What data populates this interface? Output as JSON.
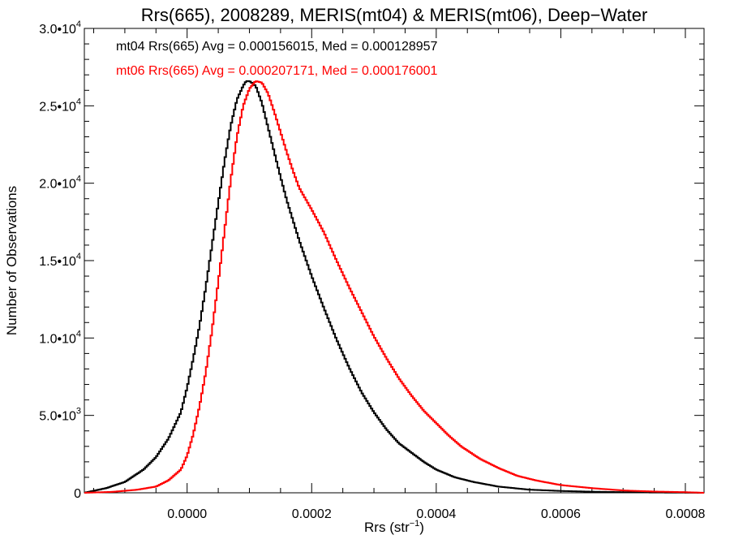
{
  "chart_data": {
    "type": "line",
    "title": "Rrs(665), 2008289, MERIS(mt04) & MERIS(mt06), Deep−Water",
    "xlabel_main": "Rrs (str",
    "xlabel_sup": "−1",
    "xlabel_close": ")",
    "ylabel": "Number of Observations",
    "xlim": [
      -0.000165,
      0.00083
    ],
    "ylim": [
      0,
      30000
    ],
    "x_ticks": [
      {
        "value": 0.0,
        "label": "0.0000"
      },
      {
        "value": 0.0002,
        "label": "0.0002"
      },
      {
        "value": 0.0004,
        "label": "0.0004"
      },
      {
        "value": 0.0006,
        "label": "0.0006"
      },
      {
        "value": 0.0008,
        "label": "0.0008"
      }
    ],
    "y_ticks": [
      {
        "value": 0,
        "mant": "0",
        "exp": ""
      },
      {
        "value": 5000,
        "mant": "5.0•10",
        "exp": "3"
      },
      {
        "value": 10000,
        "mant": "1.0•10",
        "exp": "4"
      },
      {
        "value": 15000,
        "mant": "1.5•10",
        "exp": "4"
      },
      {
        "value": 20000,
        "mant": "2.0•10",
        "exp": "4"
      },
      {
        "value": 25000,
        "mant": "2.5•10",
        "exp": "4"
      },
      {
        "value": 30000,
        "mant": "3.0•10",
        "exp": "4"
      }
    ],
    "annotations": [
      "mt04 Rrs(665) Avg = 0.000156015, Med = 0.000128957",
      "mt06 Rrs(665) Avg = 0.000207171, Med = 0.000176001"
    ],
    "series": [
      {
        "color": "#000000",
        "x": [
          -0.000165,
          -0.00013,
          -0.0001,
          -7e-05,
          -5e-05,
          -3e-05,
          -1e-05,
          0.0,
          1e-05,
          2e-05,
          3e-05,
          4e-05,
          5e-05,
          6e-05,
          7e-05,
          8e-05,
          9e-05,
          9.5e-05,
          0.0001,
          0.00011,
          0.00012,
          0.00013,
          0.00014,
          0.00015,
          0.00016,
          0.00017,
          0.00018,
          0.0002,
          0.00022,
          0.00024,
          0.00026,
          0.00028,
          0.0003,
          0.00032,
          0.00034,
          0.00036,
          0.00038,
          0.0004,
          0.00043,
          0.00046,
          0.0005,
          0.00055,
          0.0006,
          0.00065,
          0.0007,
          0.00075,
          0.0008,
          0.00083
        ],
        "y": [
          0,
          300,
          700,
          1500,
          2300,
          3500,
          5200,
          6800,
          8700,
          10800,
          13300,
          16000,
          18700,
          21400,
          23700,
          25400,
          26300,
          26600,
          26600,
          26300,
          25200,
          23600,
          22000,
          20400,
          18900,
          17600,
          16300,
          14000,
          11900,
          9900,
          8100,
          6500,
          5200,
          4100,
          3200,
          2600,
          2000,
          1500,
          1000,
          700,
          400,
          200,
          120,
          70,
          40,
          20,
          10,
          0
        ]
      },
      {
        "color": "#ff0000",
        "x": [
          -0.000165,
          -0.00012,
          -8e-05,
          -5e-05,
          -3e-05,
          -1e-05,
          0.0,
          1e-05,
          2e-05,
          3e-05,
          4e-05,
          5e-05,
          6e-05,
          7e-05,
          8e-05,
          9e-05,
          0.0001,
          0.00011,
          0.00012,
          0.00013,
          0.00014,
          0.00015,
          0.00016,
          0.00017,
          0.00018,
          0.0002,
          0.00022,
          0.00024,
          0.00026,
          0.00028,
          0.0003,
          0.00032,
          0.00034,
          0.00036,
          0.00038,
          0.0004,
          0.00042,
          0.00044,
          0.00047,
          0.0005,
          0.00053,
          0.00056,
          0.0006,
          0.00065,
          0.0007,
          0.00075,
          0.0008,
          0.00083
        ],
        "y": [
          0,
          60,
          200,
          400,
          800,
          1500,
          2400,
          3800,
          5600,
          7800,
          10500,
          13600,
          16900,
          20200,
          23000,
          25000,
          26100,
          26600,
          26500,
          25800,
          24600,
          23300,
          22000,
          20800,
          19700,
          18300,
          16800,
          15000,
          13300,
          11700,
          10100,
          8700,
          7400,
          6300,
          5300,
          4500,
          3700,
          3000,
          2200,
          1600,
          1100,
          800,
          500,
          300,
          150,
          80,
          40,
          0
        ]
      }
    ]
  }
}
